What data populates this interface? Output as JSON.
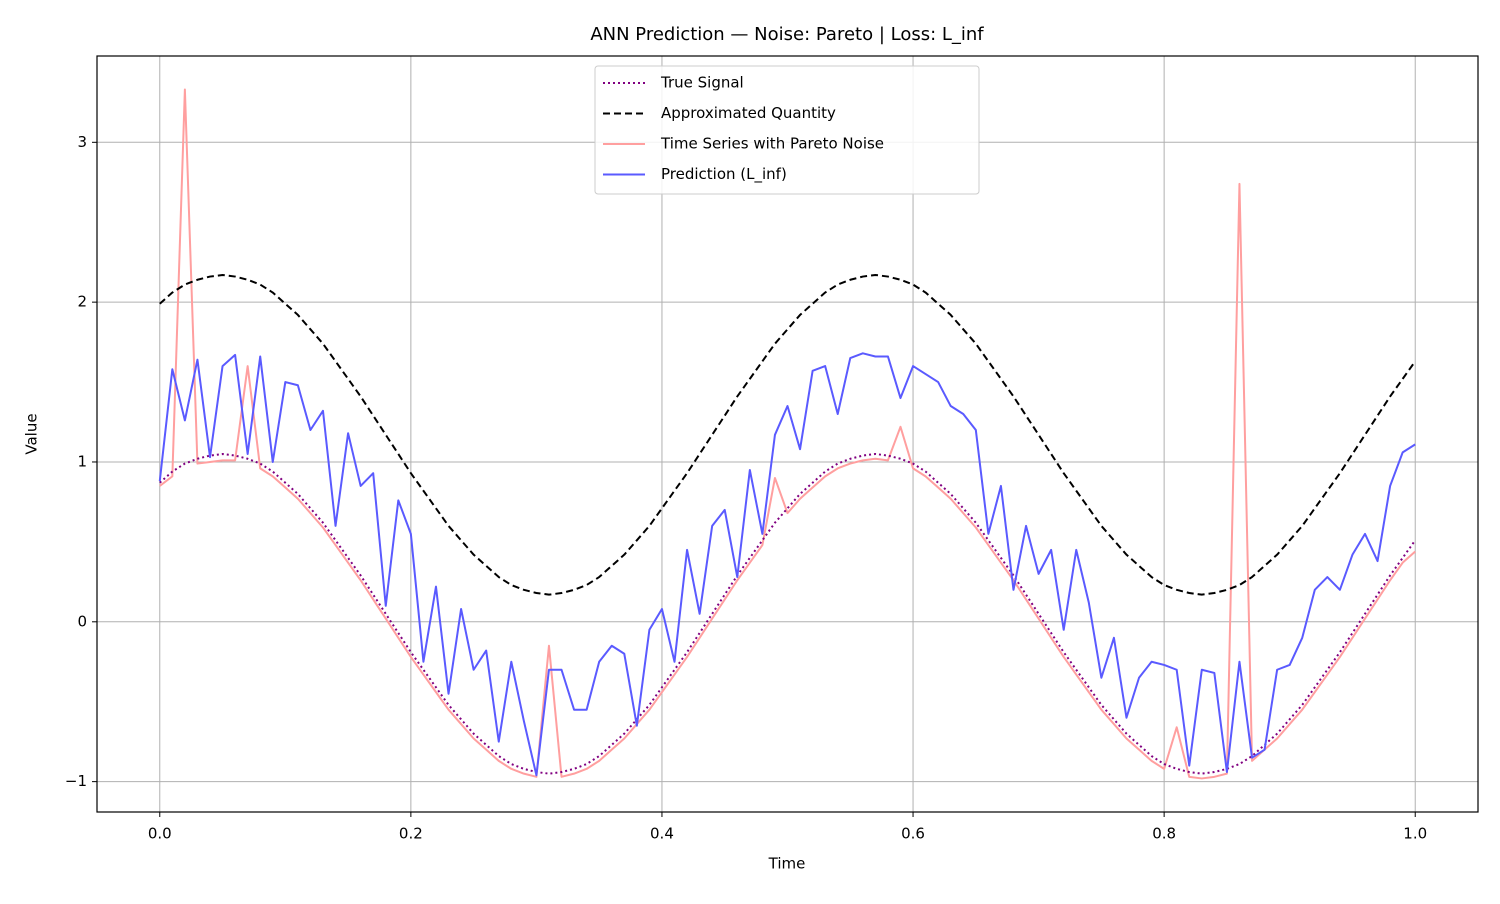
{
  "chart_data": {
    "type": "line",
    "title": "ANN Prediction — Noise: Pareto | Loss: L_inf",
    "x_label": "Time",
    "y_label": "Value",
    "xlim": [
      -0.05,
      1.05
    ],
    "ylim": [
      -1.19,
      3.54
    ],
    "xticks": [
      {
        "value": 0,
        "label": "0.0"
      },
      {
        "value": 0.2,
        "label": "0.2"
      },
      {
        "value": 0.4,
        "label": "0.4"
      },
      {
        "value": 0.6,
        "label": "0.6"
      },
      {
        "value": 0.8,
        "label": "0.8"
      },
      {
        "value": 1,
        "label": "1.0"
      }
    ],
    "yticks": [
      {
        "value": -1,
        "label": "−1"
      },
      0,
      1,
      2,
      3
    ],
    "grid": true,
    "legend": "upper center",
    "x": [
      0,
      0.01,
      0.02,
      0.03,
      0.04,
      0.05,
      0.06,
      0.07,
      0.08,
      0.09,
      0.1,
      0.11,
      0.12,
      0.13,
      0.14,
      0.15,
      0.16,
      0.17,
      0.18,
      0.19,
      0.2,
      0.21,
      0.22,
      0.23,
      0.24,
      0.25,
      0.26,
      0.27,
      0.28,
      0.29,
      0.3,
      0.31,
      0.32,
      0.33,
      0.34,
      0.35,
      0.36,
      0.37,
      0.38,
      0.39,
      0.4,
      0.41,
      0.42,
      0.43,
      0.44,
      0.45,
      0.46,
      0.47,
      0.48,
      0.49,
      0.5,
      0.51,
      0.52,
      0.53,
      0.54,
      0.55,
      0.56,
      0.57,
      0.58,
      0.59,
      0.6,
      0.61,
      0.62,
      0.63,
      0.64,
      0.65,
      0.66,
      0.67,
      0.68,
      0.69,
      0.7,
      0.71,
      0.72,
      0.73,
      0.74,
      0.75,
      0.76,
      0.77,
      0.78,
      0.79,
      0.8,
      0.81,
      0.82,
      0.83,
      0.84,
      0.85,
      0.86,
      0.87,
      0.88,
      0.89,
      0.9,
      0.91,
      0.92,
      0.93,
      0.94,
      0.95,
      0.96,
      0.97,
      0.98,
      0.99,
      1
    ],
    "series": [
      {
        "name": "Time Series with Pareto Noise",
        "color": "#ff9f9f",
        "style": "solid",
        "values": [
          0.85,
          0.91,
          3.33,
          0.99,
          1.0,
          1.01,
          1.01,
          1.6,
          0.96,
          0.91,
          0.84,
          0.77,
          0.68,
          0.59,
          0.48,
          0.37,
          0.26,
          0.14,
          0.02,
          -0.1,
          -0.22,
          -0.33,
          -0.44,
          -0.55,
          -0.64,
          -0.73,
          -0.8,
          -0.87,
          -0.92,
          -0.95,
          -0.97,
          -0.15,
          -0.97,
          -0.95,
          -0.92,
          -0.87,
          -0.8,
          -0.73,
          -0.64,
          -0.55,
          -0.44,
          -0.33,
          -0.22,
          -0.1,
          0.02,
          0.14,
          0.26,
          0.37,
          0.48,
          0.9,
          0.68,
          0.77,
          0.84,
          0.91,
          0.96,
          0.99,
          1.01,
          1.02,
          1.01,
          1.22,
          0.96,
          0.91,
          0.84,
          0.77,
          0.68,
          0.59,
          0.48,
          0.37,
          0.26,
          0.14,
          0.02,
          -0.1,
          -0.22,
          -0.33,
          -0.44,
          -0.55,
          -0.64,
          -0.73,
          -0.8,
          -0.87,
          -0.92,
          -0.66,
          -0.97,
          -0.98,
          -0.97,
          -0.95,
          2.74,
          -0.87,
          -0.8,
          -0.73,
          -0.64,
          -0.55,
          -0.44,
          -0.33,
          -0.22,
          -0.1,
          0.02,
          0.14,
          0.26,
          0.37,
          0.44
        ]
      },
      {
        "name": "True Signal",
        "color": "#800080",
        "style": "dotted",
        "values": [
          0.87,
          0.94,
          0.99,
          1.02,
          1.04,
          1.05,
          1.04,
          1.02,
          0.99,
          0.94,
          0.87,
          0.8,
          0.71,
          0.62,
          0.51,
          0.4,
          0.29,
          0.17,
          0.05,
          -0.07,
          -0.19,
          -0.3,
          -0.41,
          -0.52,
          -0.61,
          -0.7,
          -0.77,
          -0.84,
          -0.89,
          -0.92,
          -0.94,
          -0.95,
          -0.94,
          -0.92,
          -0.89,
          -0.84,
          -0.77,
          -0.7,
          -0.61,
          -0.52,
          -0.41,
          -0.3,
          -0.19,
          -0.07,
          0.05,
          0.17,
          0.29,
          0.4,
          0.51,
          0.62,
          0.71,
          0.8,
          0.87,
          0.94,
          0.99,
          1.02,
          1.04,
          1.05,
          1.04,
          1.02,
          0.99,
          0.94,
          0.87,
          0.8,
          0.71,
          0.62,
          0.51,
          0.4,
          0.29,
          0.17,
          0.05,
          -0.07,
          -0.19,
          -0.3,
          -0.41,
          -0.52,
          -0.61,
          -0.7,
          -0.77,
          -0.84,
          -0.89,
          -0.92,
          -0.94,
          -0.95,
          -0.94,
          -0.92,
          -0.89,
          -0.84,
          -0.77,
          -0.7,
          -0.61,
          -0.52,
          -0.41,
          -0.3,
          -0.19,
          -0.07,
          0.05,
          0.17,
          0.29,
          0.4,
          0.51
        ]
      },
      {
        "name": "Approximated Quantity",
        "color": "#000000",
        "style": "dashed",
        "values": [
          1.99,
          2.06,
          2.11,
          2.14,
          2.16,
          2.17,
          2.16,
          2.14,
          2.11,
          2.06,
          1.99,
          1.92,
          1.83,
          1.74,
          1.63,
          1.52,
          1.41,
          1.29,
          1.17,
          1.05,
          0.93,
          0.82,
          0.71,
          0.6,
          0.51,
          0.42,
          0.35,
          0.28,
          0.23,
          0.2,
          0.18,
          0.17,
          0.18,
          0.2,
          0.23,
          0.28,
          0.35,
          0.42,
          0.51,
          0.6,
          0.71,
          0.82,
          0.93,
          1.05,
          1.17,
          1.29,
          1.41,
          1.52,
          1.63,
          1.74,
          1.83,
          1.92,
          1.99,
          2.06,
          2.11,
          2.14,
          2.16,
          2.17,
          2.16,
          2.14,
          2.11,
          2.06,
          1.99,
          1.92,
          1.83,
          1.74,
          1.63,
          1.52,
          1.41,
          1.29,
          1.17,
          1.05,
          0.93,
          0.82,
          0.71,
          0.6,
          0.51,
          0.42,
          0.35,
          0.28,
          0.23,
          0.2,
          0.18,
          0.17,
          0.18,
          0.2,
          0.23,
          0.28,
          0.35,
          0.42,
          0.51,
          0.6,
          0.71,
          0.82,
          0.93,
          1.05,
          1.17,
          1.29,
          1.41,
          1.52,
          1.63
        ]
      },
      {
        "name": "Prediction (L_inf)",
        "color": "#5a5aff",
        "style": "solid",
        "values": [
          0.88,
          1.58,
          1.26,
          1.64,
          1.03,
          1.6,
          1.67,
          1.05,
          1.66,
          1.0,
          1.5,
          1.48,
          1.2,
          1.32,
          0.6,
          1.18,
          0.85,
          0.93,
          0.1,
          0.76,
          0.55,
          -0.25,
          0.22,
          -0.45,
          0.08,
          -0.3,
          -0.18,
          -0.75,
          -0.25,
          -0.62,
          -0.96,
          -0.3,
          -0.3,
          -0.55,
          -0.55,
          -0.25,
          -0.15,
          -0.2,
          -0.65,
          -0.05,
          0.08,
          -0.25,
          0.45,
          0.05,
          0.6,
          0.7,
          0.28,
          0.95,
          0.55,
          1.17,
          1.35,
          1.08,
          1.57,
          1.6,
          1.3,
          1.65,
          1.68,
          1.66,
          1.66,
          1.4,
          1.6,
          1.55,
          1.5,
          1.35,
          1.3,
          1.2,
          0.55,
          0.85,
          0.2,
          0.6,
          0.3,
          0.45,
          -0.05,
          0.45,
          0.12,
          -0.35,
          -0.1,
          -0.6,
          -0.35,
          -0.25,
          -0.27,
          -0.3,
          -0.9,
          -0.3,
          -0.32,
          -0.94,
          -0.25,
          -0.85,
          -0.8,
          -0.3,
          -0.27,
          -0.1,
          0.2,
          0.28,
          0.2,
          0.42,
          0.55,
          0.38,
          0.85,
          1.06,
          1.11
        ]
      }
    ],
    "legend_order": [
      1,
      2,
      0,
      3
    ]
  }
}
